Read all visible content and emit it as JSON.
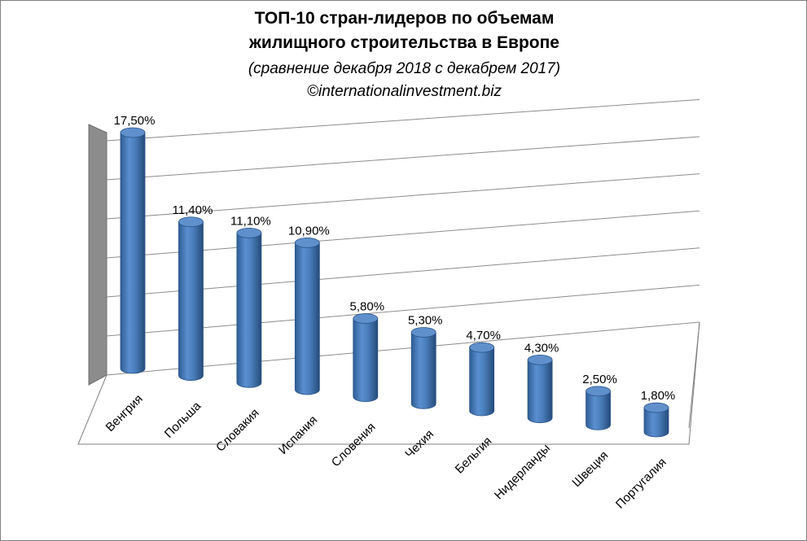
{
  "title": {
    "line1": "ТОП-10 стран-лидеров по объемам",
    "line2": "жилищного строительства в Европе",
    "subtitle": "(сравнение декабря 2018 с декабрем 2017)",
    "source": "©internationalinvestment.biz"
  },
  "colors": {
    "bar": "#4a7ebb",
    "bar_dark": "#2f5d94",
    "bar_top": "#5f90cc",
    "wall": "#8c8c8c",
    "gridline": "#8c8c8c"
  },
  "chart_data": {
    "type": "bar",
    "bar_shape": "3d-cylinder",
    "categories": [
      "Венгрия",
      "Польша",
      "Словакия",
      "Испания",
      "Словения",
      "Чехия",
      "Бельгия",
      "Нидерланды",
      "Швеция",
      "Португалия"
    ],
    "values": [
      17.5,
      11.4,
      11.1,
      10.9,
      5.8,
      5.3,
      4.7,
      4.3,
      2.5,
      1.8
    ],
    "value_labels": [
      "17,50%",
      "11,40%",
      "11,10%",
      "10,90%",
      "5,80%",
      "5,30%",
      "4,70%",
      "4,30%",
      "2,50%",
      "1,80%"
    ],
    "ylim": [
      0,
      18
    ],
    "grid": true,
    "legend": "none"
  }
}
